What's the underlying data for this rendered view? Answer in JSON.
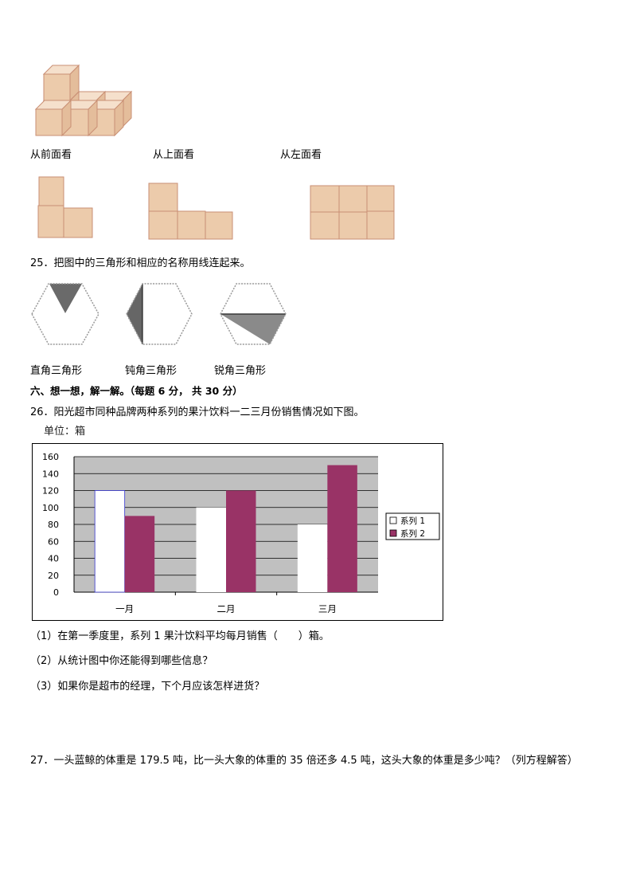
{
  "q24": {
    "view_labels": [
      "从前面看",
      "从上面看",
      "从左面看"
    ]
  },
  "q25": {
    "question": "25．把图中的三角形和相应的名称用线连起来。",
    "labels": [
      "直角三角形",
      "钝角三角形",
      "锐角三角形"
    ]
  },
  "section6": {
    "heading": "六、想一想，解一解。（每题 6 分， 共 30 分）"
  },
  "q26": {
    "question": "26．阳光超市同种品牌两种系列的果汁饮料一二三月份销售情况如下图。",
    "unit": "单位：箱",
    "sub1": "（1）在第一季度里，系列 1 果汁饮料平均每月销售（　　）箱。",
    "sub2": "（2）从统计图中你还能得到哪些信息？",
    "sub3": "（3）如果你是超市的经理，下个月应该怎样进货？"
  },
  "q27": {
    "question": "27．一头蓝鲸的体重是 179.5 吨，比一头大象的体重的 35 倍还多 4.5 吨，这头大象的体重是多少吨？（列方程解答）"
  },
  "chart_data": {
    "type": "bar",
    "categories": [
      "一月",
      "二月",
      "三月"
    ],
    "series": [
      {
        "name": "系列 1",
        "values": [
          120,
          100,
          80
        ],
        "color": "#ffffff"
      },
      {
        "name": "系列 2",
        "values": [
          90,
          120,
          150
        ],
        "color": "#993366"
      }
    ],
    "yticks": [
      "0",
      "20",
      "40",
      "60",
      "80",
      "100",
      "120",
      "140",
      "160"
    ],
    "ylim": [
      0,
      160
    ],
    "grid": true,
    "plot_background": "#c0c0c0",
    "legend": "right"
  }
}
